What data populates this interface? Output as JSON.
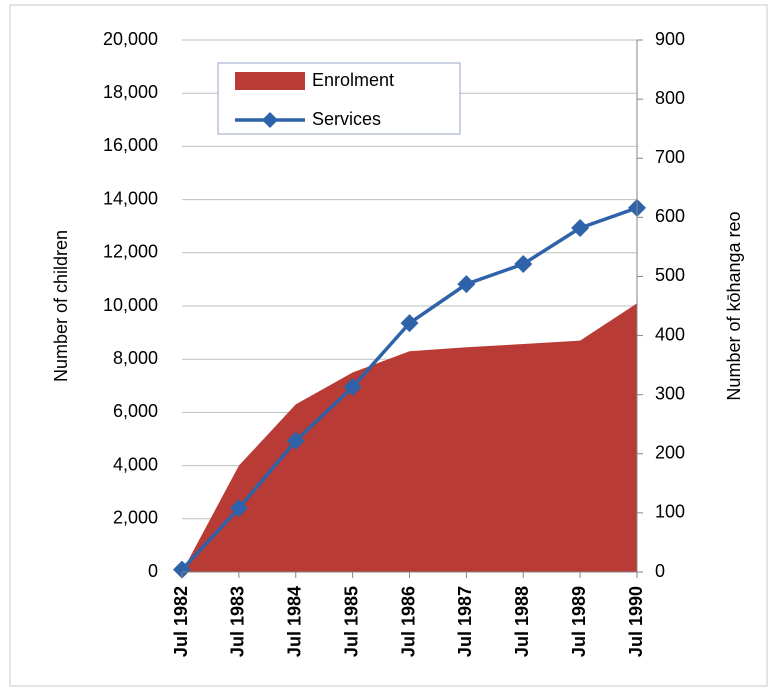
{
  "chart_data": {
    "type": "area-line",
    "categories": [
      "Jul 1982",
      "Jul 1983",
      "Jul 1984",
      "Jul 1985",
      "Jul 1986",
      "Jul 1987",
      "Jul 1988",
      "Jul 1989",
      "Jul 1990"
    ],
    "series": [
      {
        "name": "Enrolment",
        "type": "area",
        "color": "#b83b35",
        "values": [
          0,
          4000,
          6300,
          7500,
          8300,
          8450,
          8570,
          8700,
          10100
        ]
      },
      {
        "name": "Services",
        "type": "line",
        "axis": "y2",
        "color": "#2f63a9",
        "values": [
          4,
          108,
          222,
          313,
          421,
          487,
          521,
          582,
          616
        ]
      }
    ],
    "ylabel": "Number of children",
    "y2label": "Number of kōhanga reo",
    "ylim": [
      0,
      20000
    ],
    "yticks": [
      0,
      {
        "value": 2000,
        "label": "2,000"
      },
      {
        "value": 4000,
        "label": "4,000"
      },
      {
        "value": 6000,
        "label": "6,000"
      },
      {
        "value": 8000,
        "label": "8,000"
      },
      {
        "value": 10000,
        "label": "10,000"
      },
      {
        "value": 12000,
        "label": "12,000"
      },
      {
        "value": 14000,
        "label": "14,000"
      },
      {
        "value": 16000,
        "label": "16,000"
      },
      {
        "value": 18000,
        "label": "18,000"
      },
      {
        "value": 20000,
        "label": "20,000"
      }
    ],
    "y2lim": [
      0,
      900
    ],
    "y2ticks": [
      0,
      100,
      200,
      300,
      400,
      500,
      600,
      700,
      800,
      900
    ],
    "grid": true
  }
}
